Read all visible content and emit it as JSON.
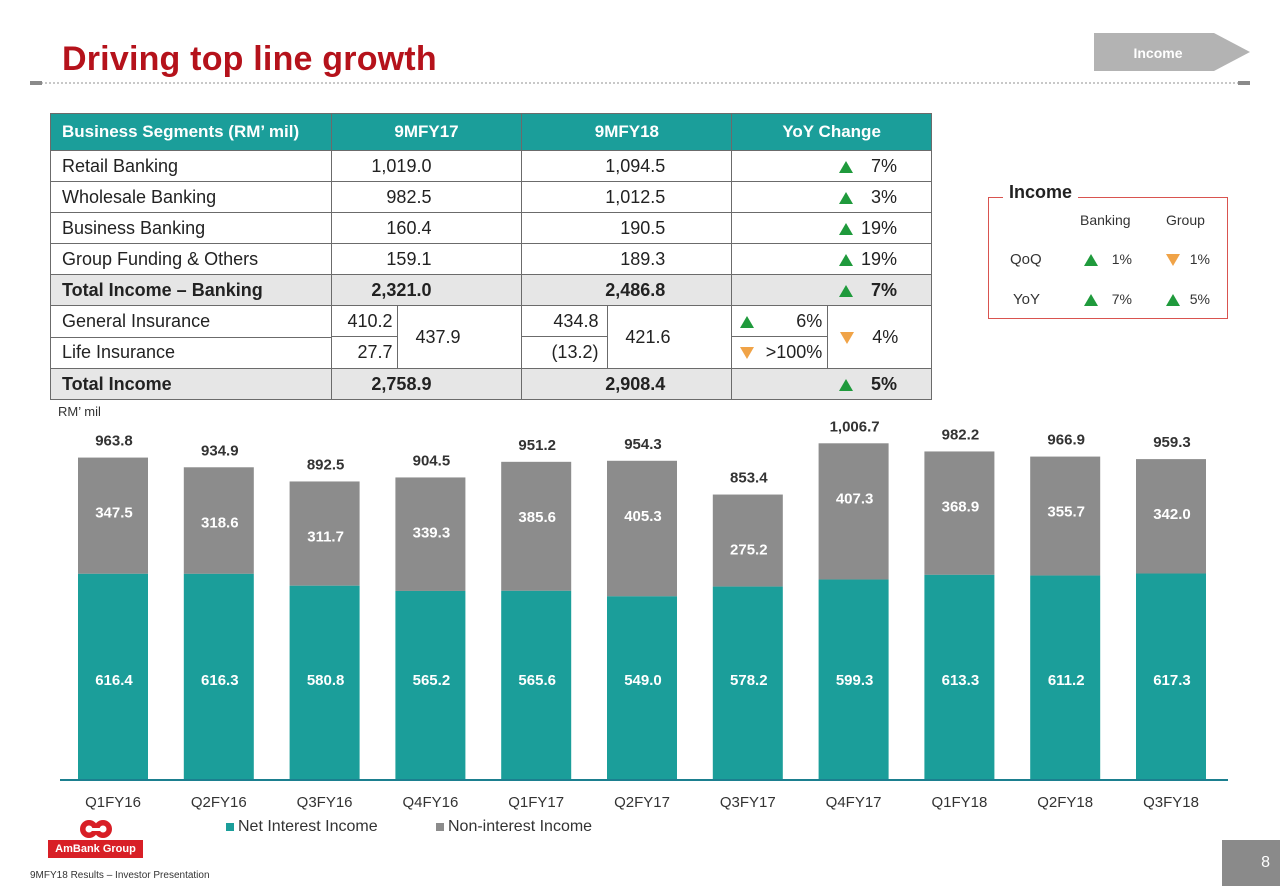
{
  "title": "Driving top line growth",
  "nav": {
    "label": "Income"
  },
  "table": {
    "headers": [
      "Business Segments (RM’ mil)",
      "9MFY17",
      "9MFY18",
      "YoY Change"
    ],
    "rows": [
      {
        "label": "Retail Banking",
        "fy17": "1,019.0",
        "fy18": "1,094.5",
        "change": "7%",
        "dir": "up"
      },
      {
        "label": "Wholesale Banking",
        "fy17": "982.5",
        "fy18": "1,012.5",
        "change": "3%",
        "dir": "up"
      },
      {
        "label": "Business Banking",
        "fy17": "160.4",
        "fy18": "190.5",
        "change": "19%",
        "dir": "up"
      },
      {
        "label": "Group Funding & Others",
        "fy17": "159.1",
        "fy18": "189.3",
        "change": "19%",
        "dir": "up"
      }
    ],
    "total_banking": {
      "label": "Total Income – Banking",
      "fy17": "2,321.0",
      "fy18": "2,486.8",
      "change": "7%",
      "dir": "up"
    },
    "insurance": {
      "general": {
        "label": "General Insurance",
        "fy17": "410.2",
        "fy18": "434.8",
        "change": "6%",
        "dir": "up"
      },
      "life": {
        "label": "Life Insurance",
        "fy17": "27.7",
        "fy18": "(13.2)",
        "change": ">100%",
        "dir": "down"
      },
      "combined_fy17": "437.9",
      "combined_fy18": "421.6",
      "combined_change": "4%",
      "combined_dir": "down"
    },
    "total_income": {
      "label": "Total Income",
      "fy17": "2,758.9",
      "fy18": "2,908.4",
      "change": "5%",
      "dir": "up"
    }
  },
  "income_box": {
    "title": "Income",
    "col_headers": [
      "Banking",
      "Group"
    ],
    "rows": [
      {
        "label": "QoQ",
        "banking": "1%",
        "banking_dir": "up",
        "group": "1%",
        "group_dir": "down"
      },
      {
        "label": "YoY",
        "banking": "7%",
        "banking_dir": "up",
        "group": "5%",
        "group_dir": "up"
      }
    ]
  },
  "colors": {
    "nii": "#1b9e9a",
    "nonii": "#8c8c8c",
    "title": "#b5121b",
    "up": "#1f9a3c",
    "down": "#f0a347"
  },
  "chart_data": {
    "type": "bar",
    "stacked": true,
    "unit_label": "RM’ mil",
    "categories": [
      "Q1FY16",
      "Q2FY16",
      "Q3FY16",
      "Q4FY16",
      "Q1FY17",
      "Q2FY17",
      "Q3FY17",
      "Q4FY17",
      "Q1FY18",
      "Q2FY18",
      "Q3FY18"
    ],
    "series": [
      {
        "name": "Net Interest Income",
        "values": [
          616.4,
          616.3,
          580.8,
          565.2,
          565.6,
          549.0,
          578.2,
          599.3,
          613.3,
          611.2,
          617.3
        ]
      },
      {
        "name": "Non-interest Income",
        "values": [
          347.5,
          318.6,
          311.7,
          339.3,
          385.6,
          405.3,
          275.2,
          407.3,
          368.9,
          355.7,
          342.0
        ]
      }
    ],
    "totals": [
      963.8,
      934.9,
      892.5,
      904.5,
      951.2,
      954.3,
      853.4,
      1006.7,
      982.2,
      966.9,
      959.3
    ],
    "total_labels": [
      "963.8",
      "934.9",
      "892.5",
      "904.5",
      "951.2",
      "954.3",
      "853.4",
      "1,006.7",
      "982.2",
      "966.9",
      "959.3"
    ],
    "nii_labels": [
      "616.4",
      "616.3",
      "580.8",
      "565.2",
      "565.6",
      "549.0",
      "578.2",
      "599.3",
      "613.3",
      "611.2",
      "617.3"
    ],
    "nonii_labels": [
      "347.5",
      "318.6",
      "311.7",
      "339.3",
      "385.6",
      "405.3",
      "275.2",
      "407.3",
      "368.9",
      "355.7",
      "342.0"
    ],
    "legend": [
      "Net Interest Income",
      "Non-interest Income"
    ],
    "legend_position": "bottom"
  },
  "footer": "9MFY18 Results – Investor Presentation",
  "logo_text": "AmBank Group",
  "page_number": "8"
}
